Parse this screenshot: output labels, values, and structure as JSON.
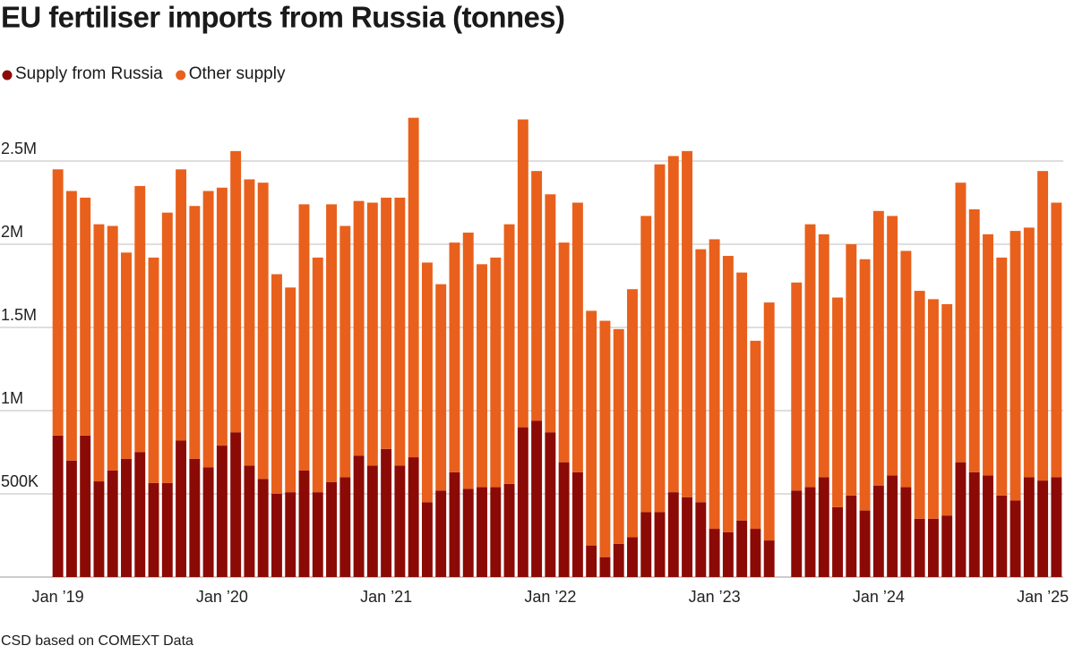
{
  "chart_data": {
    "type": "stacked_bar",
    "title": "EU fertiliser imports from Russia (tonnes)",
    "source": "CSD based on COMEXT Data",
    "categories": [
      "Jan ’19",
      null,
      null,
      null,
      null,
      null,
      null,
      null,
      null,
      null,
      null,
      null,
      "Jan ’20",
      null,
      null,
      null,
      null,
      null,
      null,
      null,
      null,
      null,
      null,
      null,
      "Jan ’21",
      null,
      null,
      null,
      null,
      null,
      null,
      null,
      null,
      null,
      null,
      null,
      "Jan ’22",
      null,
      null,
      null,
      null,
      null,
      null,
      null,
      null,
      null,
      null,
      null,
      "Jan ’23",
      null,
      null,
      null,
      null,
      null,
      null,
      null,
      null,
      null,
      null,
      null,
      "Jan ’24",
      null,
      null,
      null,
      null,
      null,
      null,
      null,
      null,
      null,
      null,
      null,
      "Jan ’25",
      null
    ],
    "series": [
      {
        "name": "Supply from Russia",
        "color": "#8b0a05",
        "values": [
          850000,
          700000,
          850000,
          575000,
          640000,
          710000,
          750000,
          565000,
          565000,
          820000,
          710000,
          660000,
          790000,
          870000,
          670000,
          590000,
          500000,
          510000,
          640000,
          510000,
          570000,
          600000,
          730000,
          670000,
          770000,
          670000,
          720000,
          450000,
          520000,
          630000,
          530000,
          540000,
          540000,
          560000,
          900000,
          940000,
          870000,
          690000,
          630000,
          190000,
          120000,
          200000,
          240000,
          390000,
          390000,
          510000,
          480000,
          450000,
          290000,
          270000,
          340000,
          290000,
          220000,
          null,
          520000,
          540000,
          600000,
          420000,
          490000,
          400000,
          550000,
          610000,
          540000,
          350000,
          350000,
          370000,
          690000,
          630000,
          610000,
          490000,
          460000,
          600000,
          580000,
          600000
        ]
      },
      {
        "name": "Other supply",
        "color": "#e8601c",
        "values": [
          1600000,
          1620000,
          1430000,
          1545000,
          1470000,
          1240000,
          1600000,
          1355000,
          1625000,
          1630000,
          1520000,
          1660000,
          1550000,
          1690000,
          1720000,
          1780000,
          1320000,
          1230000,
          1600000,
          1410000,
          1670000,
          1510000,
          1530000,
          1580000,
          1510000,
          1610000,
          2040000,
          1440000,
          1240000,
          1380000,
          1540000,
          1340000,
          1380000,
          1560000,
          1850000,
          1500000,
          1430000,
          1320000,
          1620000,
          1410000,
          1420000,
          1290000,
          1490000,
          1780000,
          2090000,
          2020000,
          2080000,
          1520000,
          1740000,
          1660000,
          1490000,
          1130000,
          1430000,
          null,
          1250000,
          1580000,
          1460000,
          1260000,
          1510000,
          1510000,
          1650000,
          1560000,
          1420000,
          1370000,
          1320000,
          1270000,
          1680000,
          1580000,
          1450000,
          1430000,
          1620000,
          1500000,
          1860000,
          1650000
        ]
      }
    ],
    "ylim": [
      0,
      2800000
    ],
    "yticks": [
      {
        "value": 500000,
        "label": "500K"
      },
      {
        "value": 1000000,
        "label": "1M"
      },
      {
        "value": 1500000,
        "label": "1.5M"
      },
      {
        "value": 2000000,
        "label": "2M"
      },
      {
        "value": 2500000,
        "label": "2.5M"
      }
    ],
    "grid": true,
    "legend": "top-left"
  }
}
